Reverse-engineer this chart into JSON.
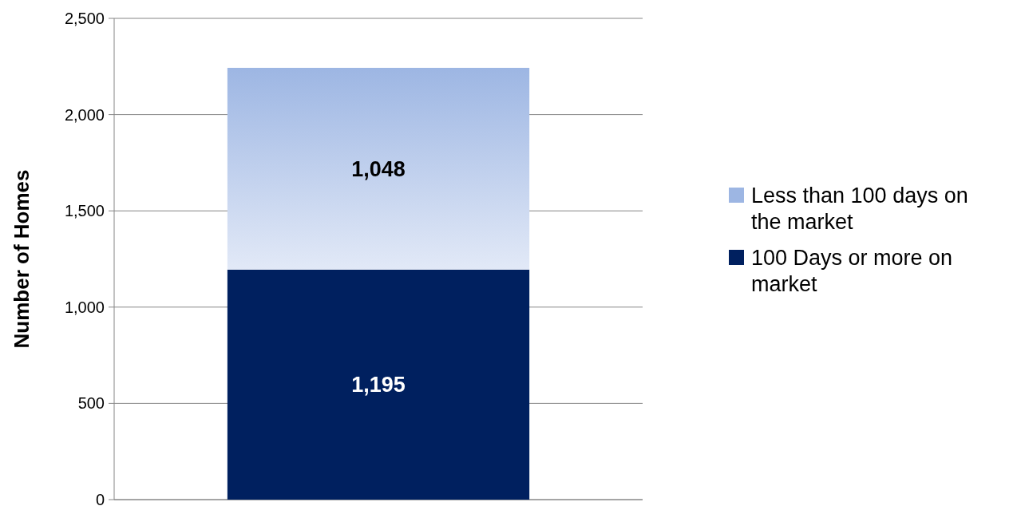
{
  "chart_data": {
    "type": "bar",
    "stacked": true,
    "categories": [
      null
    ],
    "series": [
      {
        "name": "100 Days or more on market",
        "color": "#00205f",
        "values": [
          1195
        ],
        "value_labels": [
          "1,195"
        ]
      },
      {
        "name": "Less than 100 days on the market",
        "color": "#9db6e3",
        "values": [
          1048
        ],
        "value_labels": [
          "1,048"
        ]
      }
    ],
    "ylabel": "Number of Homes",
    "ylim": [
      0,
      2500
    ],
    "yticks": [
      {
        "value": 0,
        "label": "0"
      },
      {
        "value": 500,
        "label": "500"
      },
      {
        "value": 1000,
        "label": "1,000"
      },
      {
        "value": 1500,
        "label": "1,500"
      },
      {
        "value": 2000,
        "label": "2,000"
      },
      {
        "value": 2500,
        "label": "2,500"
      }
    ],
    "grid": "y",
    "legend": "right"
  }
}
